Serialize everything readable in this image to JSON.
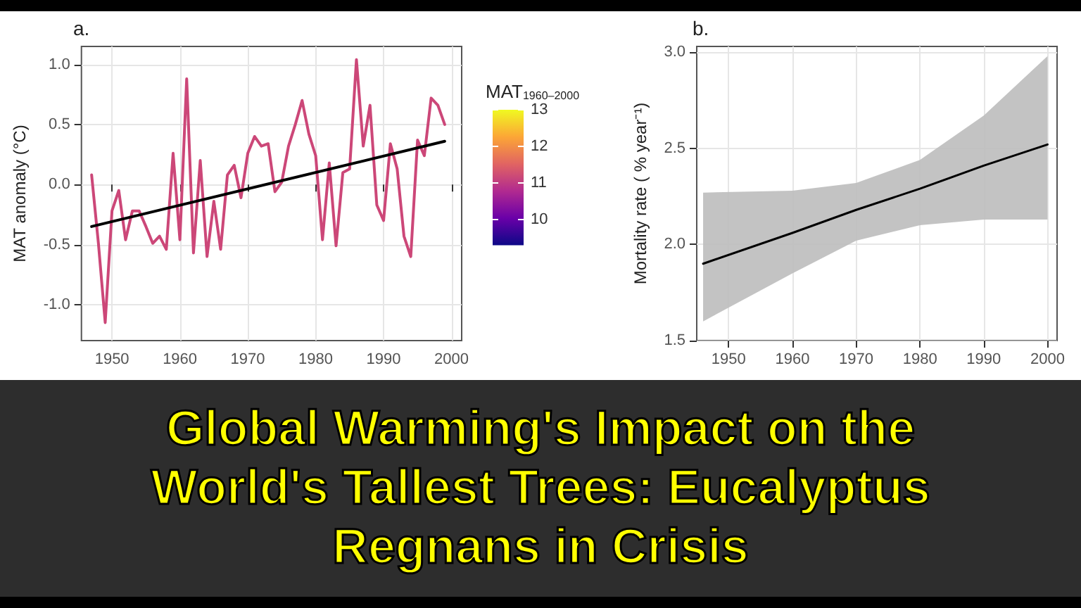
{
  "chart_data": [
    {
      "type": "line",
      "title": "a.",
      "ylabel": "MAT anomaly (°C)",
      "xlim": [
        1945.5,
        2001.5
      ],
      "xticks": [
        1950,
        1960,
        1970,
        1980,
        1990,
        2000
      ],
      "ylim": [
        -1.3,
        1.15
      ],
      "yticks": [
        {
          "value": -1,
          "label": "-1.0"
        },
        {
          "value": -0.5,
          "label": "-0.5"
        },
        {
          "value": 0,
          "label": "0.0"
        },
        {
          "value": 0.5,
          "label": "0.5"
        },
        {
          "value": 1,
          "label": "1.0"
        }
      ],
      "grid": true,
      "clabel": "MAT$_{1960–2000}$",
      "clim": [
        9.3,
        13
      ],
      "cticks": [
        10,
        11,
        12,
        13
      ],
      "x": [
        1947,
        1948,
        1949,
        1950,
        1951,
        1952,
        1953,
        1954,
        1955,
        1956,
        1957,
        1958,
        1959,
        1960,
        1961,
        1962,
        1963,
        1964,
        1965,
        1966,
        1967,
        1968,
        1969,
        1970,
        1971,
        1972,
        1973,
        1974,
        1975,
        1976,
        1977,
        1978,
        1979,
        1980,
        1981,
        1982,
        1983,
        1984,
        1985,
        1986,
        1987,
        1988,
        1989,
        1990,
        1991,
        1992,
        1993,
        1994,
        1995,
        1996,
        1997,
        1998,
        1999
      ],
      "series": [
        {
          "color": "#cc4778",
          "values": [
            0.08,
            -0.49,
            -1.15,
            -0.22,
            -0.05,
            -0.46,
            -0.22,
            -0.22,
            -0.35,
            -0.49,
            -0.43,
            -0.54,
            0.26,
            -0.46,
            0.88,
            -0.57,
            0.2,
            -0.6,
            -0.14,
            -0.54,
            0.08,
            0.16,
            -0.11,
            0.26,
            0.4,
            0.32,
            0.34,
            -0.06,
            0.02,
            0.32,
            0.5,
            0.7,
            0.42,
            0.24,
            -0.46,
            0.18,
            -0.51,
            0.1,
            0.13,
            1.04,
            0.32,
            0.66,
            -0.17,
            -0.3,
            0.34,
            0.13,
            -0.43,
            -0.6,
            0.37,
            0.24,
            0.72,
            0.66,
            0.5
          ]
        },
        {
          "type": "line",
          "color": "#000000",
          "x": [
            1947,
            1999
          ],
          "values": [
            -0.35,
            0.36
          ]
        }
      ],
      "annotations": [
        "Global Warming's Impact on the World's Tallest Trees: Eucalyptus Regnans in Crisis"
      ]
    },
    {
      "type": "line",
      "title": "b.",
      "ylabel": "Mortality rate ( % year⁻¹)",
      "xlim": [
        1945,
        2001.5
      ],
      "xticks": [
        1950,
        1960,
        1970,
        1980,
        1990,
        2000
      ],
      "ylim": [
        1.5,
        3.03
      ],
      "yticks": [
        {
          "value": 1.5,
          "label": "1.5"
        },
        {
          "value": 2,
          "label": "2.0"
        },
        {
          "value": 2.5,
          "label": "2.5"
        },
        {
          "value": 3,
          "label": "3.0"
        }
      ],
      "grid": true,
      "series": [
        {
          "color": "#000000",
          "x": [
            1946,
            1960,
            1970,
            1980,
            1990,
            2000
          ],
          "values": [
            1.9,
            2.06,
            2.18,
            2.29,
            2.41,
            2.52
          ],
          "lower": [
            1.6,
            1.85,
            2.02,
            2.1,
            2.13,
            2.13
          ],
          "upper": [
            2.27,
            2.28,
            2.32,
            2.44,
            2.67,
            2.98
          ]
        }
      ]
    }
  ]
}
